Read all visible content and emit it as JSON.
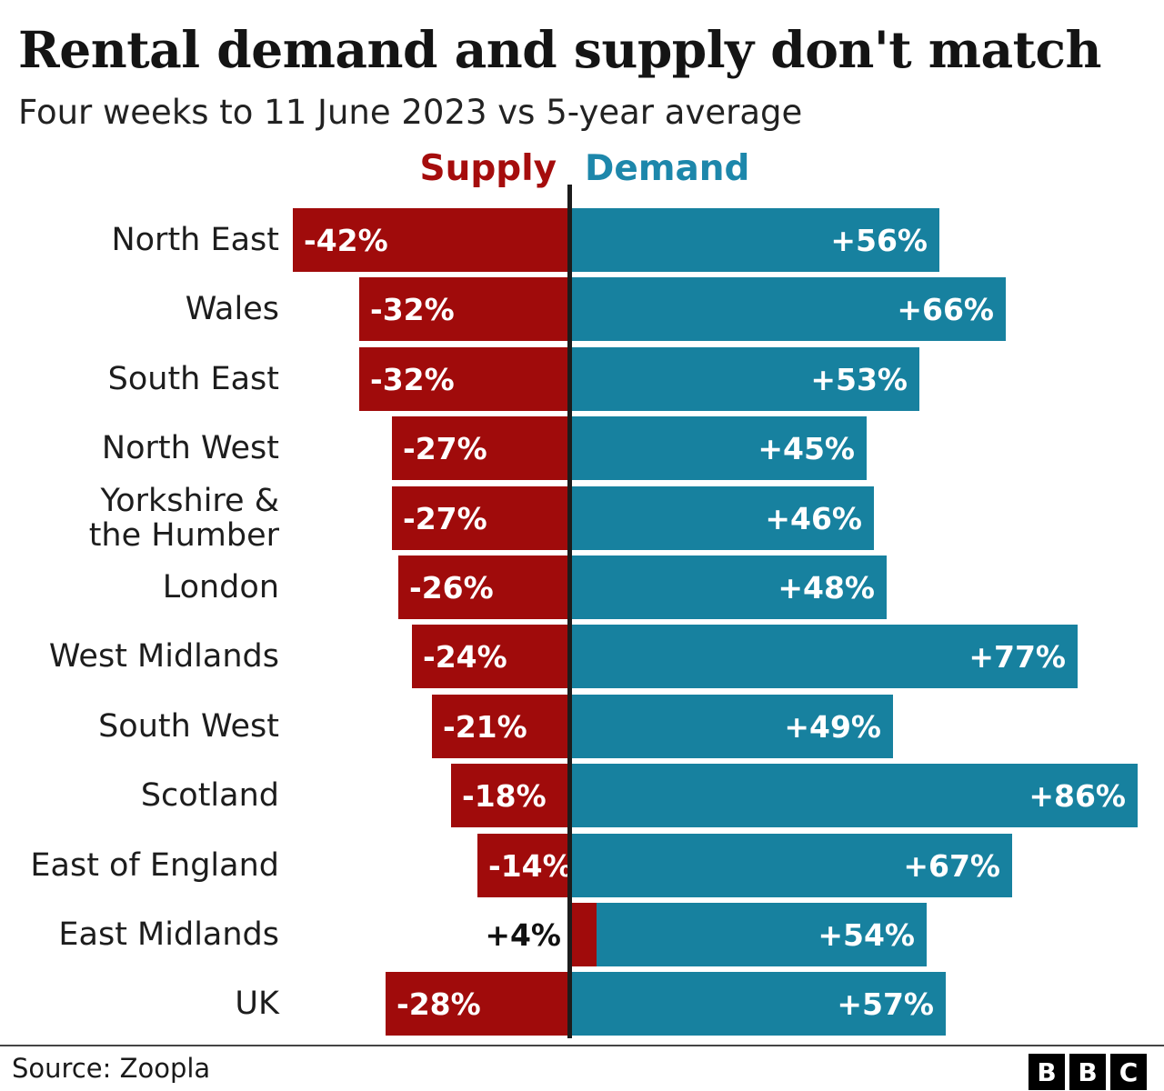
{
  "title": "Rental demand and supply don't match",
  "subtitle": "Four weeks to 11 June 2023 vs 5-year average",
  "legend": {
    "supply": "Supply",
    "demand": "Demand"
  },
  "source": {
    "label": "Source: Zoopla"
  },
  "logo": {
    "name": "BBC",
    "letters": [
      "B",
      "B",
      "C"
    ]
  },
  "colors": {
    "supply_bar": "#a00b0b",
    "demand_bar": "#17819f",
    "supply_legend_text": "#a50d0d",
    "demand_legend_text": "#1d87ab",
    "axis": "#1c1c1c",
    "bar_value_text": "#ffffff",
    "outside_value_text": "#111111"
  },
  "chart_data": {
    "type": "bar",
    "variant": "horizontal-diverging",
    "title": "Rental demand and supply don't match",
    "subtitle": "Four weeks to 11 June 2023 vs 5-year average",
    "unit": "%",
    "zero_axis": "center",
    "legend_position": "top-center",
    "grid": false,
    "categories": [
      "North East",
      "Wales",
      "South East",
      "North West",
      "Yorkshire &\nthe Humber",
      "London",
      "West Midlands",
      "South West",
      "Scotland",
      "East of England",
      "East Midlands",
      "UK"
    ],
    "series": [
      {
        "name": "Supply",
        "color": "#a00b0b",
        "values": [
          -42,
          -32,
          -32,
          -27,
          -27,
          -26,
          -24,
          -21,
          -18,
          -14,
          4,
          -28
        ],
        "labels": [
          "-42%",
          "-32%",
          "-32%",
          "-27%",
          "-27%",
          "-26%",
          "-24%",
          "-21%",
          "-18%",
          "-14%",
          "+4%",
          "-28%"
        ]
      },
      {
        "name": "Demand",
        "color": "#17819f",
        "values": [
          56,
          66,
          53,
          45,
          46,
          48,
          77,
          49,
          86,
          67,
          54,
          57
        ],
        "labels": [
          "+56%",
          "+66%",
          "+53%",
          "+45%",
          "+46%",
          "+48%",
          "+77%",
          "+49%",
          "+86%",
          "+67%",
          "+54%",
          "+57%"
        ]
      }
    ],
    "x_range_shown": [
      -45,
      90
    ]
  }
}
